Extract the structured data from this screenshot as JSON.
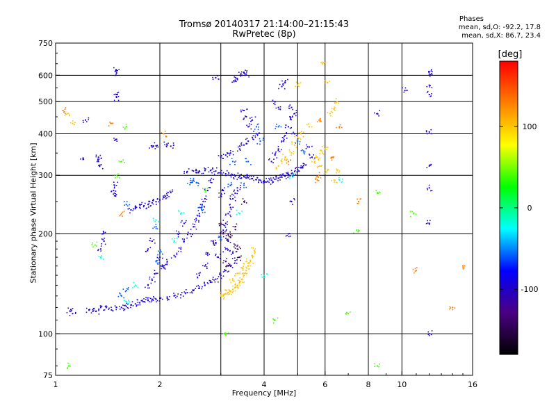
{
  "chart_data": {
    "type": "scatter",
    "title": "Tromsø 20140317 21:14:00–21:15:43",
    "subtitle": "RwPretec (8p)",
    "xlabel": "Frequency [MHz]",
    "ylabel": "Stationary phase Virtual Height [km]",
    "x_scale": "log",
    "y_scale": "log",
    "xlim": [
      1,
      16
    ],
    "ylim": [
      75,
      750
    ],
    "x_ticks": [
      1,
      2,
      4,
      6,
      8,
      10,
      16
    ],
    "y_ticks": [
      75,
      100,
      200,
      300,
      400,
      500,
      600,
      750
    ],
    "x_grid": [
      2,
      3,
      4,
      5,
      6,
      8,
      10
    ],
    "y_grid": [
      100,
      200,
      300,
      400,
      500,
      600
    ],
    "grid": true,
    "stats": {
      "heading": "Phases",
      "line_o": "mean, sd,O: -92.2, 17.8",
      "line_x": "mean, sd,X:  86.7, 23.4"
    },
    "colorbar": {
      "label": "[deg]",
      "range": [
        -180,
        180
      ],
      "ticks": [
        {
          "value": 100,
          "label": "100"
        },
        {
          "value": 0,
          "label": "0"
        },
        {
          "value": -100,
          "label": "-100"
        }
      ],
      "colors": [
        "#000000",
        "#4b0082",
        "#0000ff",
        "#00ffff",
        "#00ff00",
        "#ffff00",
        "#ff7f00",
        "#ff0000"
      ]
    },
    "series": [
      {
        "phase": -95,
        "points": [
          [
            1.25,
            118
          ],
          [
            1.28,
            117
          ],
          [
            1.31,
            117
          ],
          [
            1.35,
            120
          ],
          [
            1.4,
            120
          ],
          [
            1.45,
            118
          ],
          [
            1.5,
            120
          ],
          [
            1.55,
            120
          ],
          [
            1.6,
            121
          ],
          [
            1.65,
            122
          ],
          [
            1.7,
            123
          ],
          [
            1.75,
            124
          ],
          [
            1.8,
            125
          ],
          [
            1.85,
            126
          ],
          [
            1.9,
            127
          ],
          [
            1.95,
            127
          ],
          [
            2.0,
            128
          ],
          [
            2.1,
            129
          ],
          [
            2.2,
            130
          ],
          [
            2.3,
            131
          ],
          [
            2.4,
            133
          ],
          [
            2.5,
            135
          ],
          [
            2.6,
            137
          ],
          [
            2.7,
            140
          ],
          [
            2.8,
            143
          ],
          [
            2.9,
            146
          ],
          [
            3.0,
            150
          ],
          [
            3.1,
            155
          ],
          [
            3.2,
            160
          ],
          [
            3.3,
            166
          ],
          [
            1.65,
            236
          ],
          [
            1.7,
            238
          ],
          [
            1.75,
            240
          ],
          [
            1.8,
            243
          ],
          [
            1.85,
            245
          ],
          [
            1.9,
            248
          ],
          [
            1.95,
            250
          ],
          [
            2.0,
            253
          ],
          [
            2.05,
            257
          ],
          [
            2.1,
            261
          ],
          [
            2.15,
            266
          ],
          [
            2.4,
            308
          ],
          [
            2.5,
            309
          ],
          [
            2.6,
            309
          ],
          [
            2.7,
            310
          ],
          [
            2.8,
            310
          ],
          [
            2.9,
            309
          ],
          [
            3.0,
            305
          ],
          [
            3.1,
            303
          ],
          [
            3.2,
            300
          ],
          [
            3.3,
            298
          ],
          [
            3.4,
            298
          ],
          [
            3.5,
            297
          ],
          [
            3.6,
            295
          ],
          [
            3.7,
            293
          ],
          [
            3.8,
            291
          ],
          [
            3.9,
            290
          ],
          [
            4.0,
            289
          ],
          [
            4.1,
            288
          ],
          [
            4.2,
            290
          ],
          [
            4.3,
            292
          ],
          [
            4.4,
            294
          ],
          [
            4.5,
            296
          ],
          [
            4.6,
            298
          ],
          [
            4.7,
            301
          ],
          [
            4.8,
            304
          ],
          [
            4.9,
            308
          ],
          [
            5.0,
            312
          ],
          [
            5.1,
            316
          ],
          [
            5.2,
            321
          ],
          [
            1.85,
            140
          ],
          [
            1.9,
            145
          ],
          [
            1.95,
            152
          ],
          [
            2.05,
            158
          ],
          [
            2.1,
            165
          ],
          [
            2.2,
            172
          ],
          [
            2.3,
            180
          ],
          [
            2.35,
            190
          ],
          [
            2.45,
            200
          ],
          [
            2.5,
            210
          ],
          [
            2.55,
            220
          ],
          [
            2.6,
            230
          ],
          [
            2.65,
            245
          ],
          [
            2.7,
            255
          ],
          [
            2.75,
            270
          ],
          [
            2.8,
            290
          ],
          [
            3.05,
            205
          ],
          [
            3.1,
            215
          ],
          [
            3.15,
            230
          ],
          [
            3.2,
            240
          ],
          [
            3.25,
            255
          ],
          [
            3.3,
            265
          ],
          [
            3.35,
            275
          ],
          [
            3.0,
            340
          ],
          [
            3.1,
            345
          ],
          [
            3.2,
            350
          ],
          [
            3.4,
            360
          ],
          [
            3.5,
            370
          ],
          [
            3.6,
            380
          ],
          [
            3.7,
            390
          ],
          [
            3.8,
            400
          ],
          [
            4.2,
            330
          ],
          [
            4.3,
            345
          ],
          [
            4.4,
            360
          ],
          [
            4.5,
            380
          ],
          [
            4.6,
            395
          ],
          [
            4.7,
            420
          ],
          [
            4.75,
            450
          ],
          [
            4.8,
            480
          ],
          [
            3.3,
            580
          ],
          [
            3.35,
            585
          ],
          [
            3.45,
            600
          ],
          [
            3.5,
            610
          ],
          [
            3.55,
            605
          ],
          [
            2.9,
            590
          ],
          [
            4.5,
            555
          ],
          [
            4.6,
            570
          ],
          [
            1.9,
            365
          ],
          [
            1.95,
            368
          ],
          [
            2.1,
            370
          ],
          [
            2.15,
            367
          ],
          [
            1.5,
            620
          ],
          [
            1.5,
            610
          ],
          [
            1.5,
            525
          ],
          [
            1.5,
            515
          ],
          [
            1.5,
            385
          ],
          [
            1.33,
            340
          ],
          [
            1.33,
            330
          ],
          [
            1.34,
            320
          ],
          [
            1.2,
            335
          ],
          [
            1.22,
            440
          ],
          [
            1.37,
            200
          ],
          [
            1.38,
            190
          ],
          [
            1.35,
            180
          ],
          [
            1.47,
            270
          ],
          [
            1.48,
            280
          ],
          [
            1.49,
            260
          ],
          [
            1.1,
            117
          ],
          [
            1.12,
            115
          ],
          [
            12.0,
            615
          ],
          [
            12.0,
            605
          ],
          [
            12.0,
            560
          ],
          [
            12.0,
            525
          ],
          [
            12.0,
            405
          ],
          [
            12.0,
            320
          ],
          [
            12.0,
            275
          ],
          [
            12.0,
            215
          ],
          [
            12.0,
            100
          ],
          [
            10.2,
            540
          ],
          [
            8.5,
            460
          ],
          [
            4.8,
            250
          ],
          [
            4.7,
            200
          ],
          [
            1.85,
            180
          ],
          [
            1.9,
            190
          ],
          [
            2.0,
            170
          ],
          [
            2.05,
            160
          ],
          [
            2.25,
            200
          ],
          [
            2.35,
            215
          ],
          [
            2.6,
            150
          ],
          [
            2.7,
            160
          ],
          [
            2.75,
            175
          ],
          [
            2.85,
            190
          ],
          [
            2.95,
            170
          ],
          [
            3.0,
            260
          ],
          [
            3.05,
            270
          ],
          [
            3.1,
            180
          ],
          [
            3.15,
            190
          ],
          [
            3.25,
            175
          ],
          [
            4.3,
            500
          ],
          [
            4.4,
            480
          ],
          [
            4.9,
            460
          ],
          [
            4.9,
            400
          ],
          [
            5.4,
            365
          ],
          [
            5.5,
            340
          ],
          [
            3.5,
            470
          ],
          [
            3.55,
            450
          ],
          [
            3.6,
            420
          ],
          [
            3.7,
            440
          ]
        ]
      },
      {
        "phase": -60,
        "points": [
          [
            1.55,
            130
          ],
          [
            1.6,
            135
          ],
          [
            1.95,
            165
          ],
          [
            2.0,
            175
          ],
          [
            2.45,
            285
          ],
          [
            2.5,
            290
          ],
          [
            2.55,
            285
          ],
          [
            2.6,
            240
          ],
          [
            2.65,
            235
          ],
          [
            3.2,
            280
          ],
          [
            3.25,
            330
          ],
          [
            3.5,
            280
          ],
          [
            3.6,
            330
          ],
          [
            3.8,
            420
          ],
          [
            3.9,
            380
          ],
          [
            4.4,
            420
          ],
          [
            5.0,
            380
          ],
          [
            5.2,
            355
          ],
          [
            1.6,
            245
          ],
          [
            1.95,
            210
          ],
          [
            3.0,
            195
          ]
        ]
      },
      {
        "phase": -140,
        "points": [
          [
            3.15,
            200
          ],
          [
            3.2,
            195
          ],
          [
            3.3,
            185
          ],
          [
            3.35,
            180
          ],
          [
            3.4,
            170
          ],
          [
            3.1,
            165
          ],
          [
            3.15,
            160
          ],
          [
            3.5,
            250
          ],
          [
            3.0,
            215
          ],
          [
            3.05,
            200
          ],
          [
            2.9,
            188
          ],
          [
            3.3,
            210
          ]
        ]
      },
      {
        "phase": 100,
        "points": [
          [
            3.0,
            130
          ],
          [
            3.05,
            131
          ],
          [
            3.1,
            132
          ],
          [
            3.15,
            133
          ],
          [
            3.2,
            134
          ],
          [
            3.25,
            136
          ],
          [
            3.3,
            138
          ],
          [
            3.35,
            140
          ],
          [
            3.4,
            143
          ],
          [
            3.45,
            146
          ],
          [
            3.5,
            150
          ],
          [
            3.55,
            155
          ],
          [
            3.6,
            160
          ],
          [
            3.65,
            166
          ],
          [
            3.7,
            172
          ],
          [
            3.75,
            178
          ],
          [
            3.25,
            145
          ],
          [
            3.35,
            152
          ],
          [
            3.45,
            158
          ],
          [
            3.55,
            165
          ],
          [
            4.4,
            320
          ],
          [
            4.5,
            330
          ],
          [
            4.6,
            340
          ],
          [
            4.8,
            350
          ],
          [
            4.9,
            370
          ],
          [
            5.0,
            390
          ],
          [
            5.1,
            400
          ],
          [
            5.6,
            330
          ],
          [
            5.7,
            340
          ],
          [
            5.8,
            320
          ],
          [
            5.9,
            350
          ],
          [
            6.0,
            360
          ],
          [
            6.1,
            310
          ],
          [
            6.4,
            290
          ],
          [
            6.5,
            310
          ],
          [
            6.2,
            460
          ],
          [
            6.4,
            480
          ],
          [
            6.5,
            500
          ],
          [
            5.4,
            420
          ],
          [
            5.0,
            560
          ],
          [
            5.9,
            650
          ],
          [
            6.1,
            570
          ],
          [
            1.08,
            460
          ],
          [
            1.12,
            430
          ]
        ]
      },
      {
        "phase": 130,
        "points": [
          [
            5.7,
            290
          ],
          [
            5.75,
            300
          ],
          [
            6.3,
            340
          ],
          [
            6.6,
            420
          ],
          [
            4.7,
            330
          ],
          [
            1.45,
            430
          ],
          [
            1.55,
            230
          ],
          [
            1.05,
            470
          ],
          [
            2.05,
            400
          ],
          [
            15.0,
            160
          ],
          [
            14.0,
            120
          ],
          [
            11.0,
            155
          ],
          [
            7.5,
            250
          ],
          [
            5.8,
            440
          ]
        ]
      },
      {
        "phase": 40,
        "points": [
          [
            1.55,
            330
          ],
          [
            1.5,
            300
          ],
          [
            1.6,
            420
          ],
          [
            2.7,
            270
          ],
          [
            1.3,
            185
          ],
          [
            3.1,
            100
          ],
          [
            4.3,
            110
          ],
          [
            8.5,
            265
          ],
          [
            8.5,
            80
          ],
          [
            1.1,
            80
          ],
          [
            7.4,
            205
          ],
          [
            10.8,
            230
          ],
          [
            7.0,
            115
          ]
        ]
      },
      {
        "phase": -20,
        "points": [
          [
            1.6,
            125
          ],
          [
            2.2,
            190
          ],
          [
            2.3,
            230
          ],
          [
            1.95,
            220
          ],
          [
            3.4,
            230
          ],
          [
            4.0,
            150
          ],
          [
            4.8,
            300
          ],
          [
            6.6,
            290
          ],
          [
            1.35,
            170
          ],
          [
            1.7,
            140
          ]
        ]
      }
    ]
  }
}
